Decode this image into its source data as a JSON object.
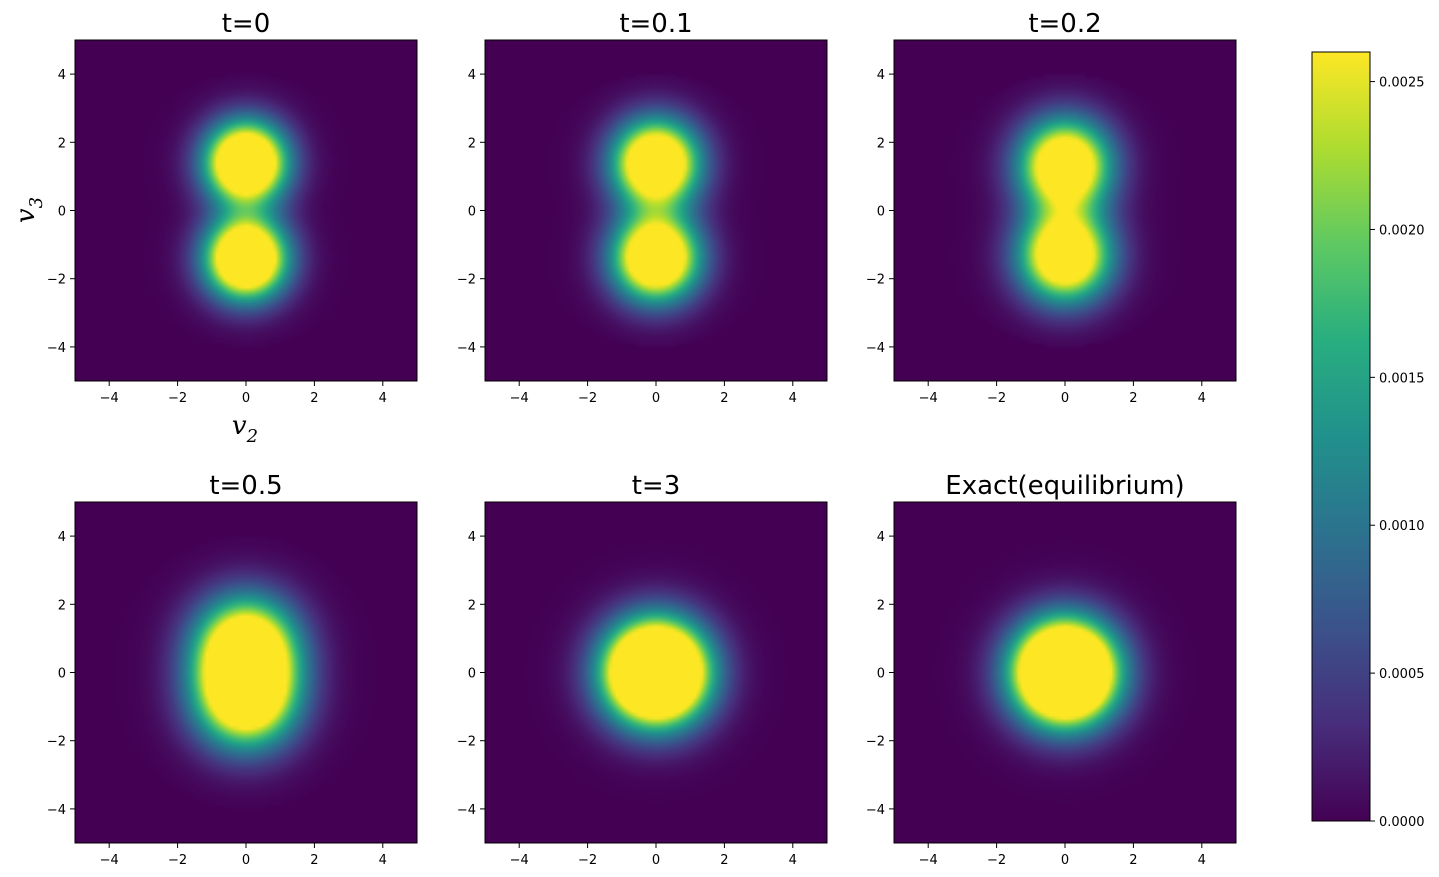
{
  "chart_data": {
    "type": "heatmap",
    "colormap": "viridis",
    "xlabel": "v",
    "xlabel_sub": "2",
    "ylabel": "v",
    "ylabel_sub": "3",
    "xlim": [
      -5,
      5
    ],
    "ylim": [
      -5,
      5
    ],
    "ticks": [
      -4,
      -2,
      0,
      2,
      4
    ],
    "tick_labels": [
      "−4",
      "−2",
      "0",
      "2",
      "4"
    ],
    "colorbar": {
      "range": [
        0,
        0.0026
      ],
      "ticks": [
        0.0,
        0.0005,
        0.001,
        0.0015,
        0.002,
        0.0025
      ],
      "tick_labels": [
        "0.0000",
        "0.0005",
        "0.0010",
        "0.0015",
        "0.0020",
        "0.0025"
      ]
    },
    "panels": [
      {
        "title": "t=0",
        "centers": [
          [
            0,
            1.4
          ],
          [
            0,
            -1.4
          ]
        ],
        "sigma": 0.8,
        "amplitude": 0.0046,
        "support_radius": 4.0
      },
      {
        "title": "t=0.1",
        "centers": [
          [
            0,
            1.38
          ],
          [
            0,
            -1.38
          ]
        ],
        "sigma": 0.85,
        "amplitude": 0.0042,
        "support_radius": 4.0
      },
      {
        "title": "t=0.2",
        "centers": [
          [
            0,
            1.32
          ],
          [
            0,
            -1.32
          ]
        ],
        "sigma": 0.9,
        "amplitude": 0.0039,
        "support_radius": 4.0
      },
      {
        "title": "t=0.5",
        "centers": [
          [
            0,
            0.75
          ],
          [
            0,
            -0.75
          ]
        ],
        "sigma": 1.0,
        "amplitude": 0.0036,
        "support_radius": 4.0
      },
      {
        "title": "t=3",
        "centers": [
          [
            0,
            0
          ]
        ],
        "sigma": 1.0,
        "amplitude": 0.0064,
        "support_radius": 4.0
      },
      {
        "title": "Exact(equilibrium)",
        "centers": [
          [
            0,
            0
          ]
        ],
        "sigma": 1.0,
        "amplitude": 0.0064,
        "support_radius": null
      }
    ]
  }
}
